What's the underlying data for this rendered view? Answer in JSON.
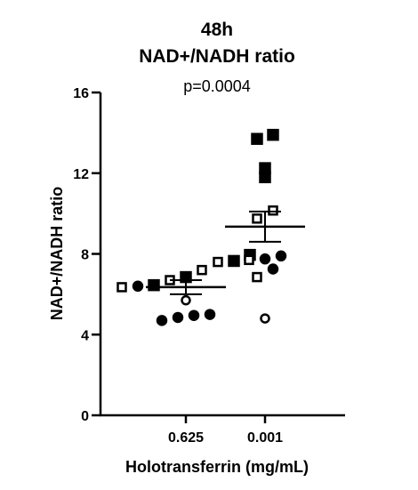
{
  "chart_data": {
    "type": "scatter",
    "title": [
      "48h",
      "NAD+/NADH ratio"
    ],
    "annotation": "p=0.0004",
    "xlabel": "Holotransferrin (mg/mL)",
    "ylabel": "NAD+/NADH ratio",
    "categories": [
      "0.625",
      "0.001"
    ],
    "ylim": [
      0,
      16
    ],
    "yticks": [
      0,
      4,
      8,
      12,
      16
    ],
    "grid": false,
    "groups": [
      {
        "category": "0.625",
        "mean": 6.35,
        "sem_low": 6.0,
        "sem_high": 6.7,
        "points": [
          {
            "marker": "filled-square",
            "value": 7.65
          },
          {
            "marker": "filled-square",
            "value": 7.95
          },
          {
            "marker": "filled-square",
            "value": 6.85
          },
          {
            "marker": "filled-square",
            "value": 6.45
          },
          {
            "marker": "open-square",
            "value": 7.6
          },
          {
            "marker": "open-square",
            "value": 7.2
          },
          {
            "marker": "open-square",
            "value": 6.7
          },
          {
            "marker": "open-square",
            "value": 6.35
          },
          {
            "marker": "filled-circle",
            "value": 6.4
          },
          {
            "marker": "filled-circle",
            "value": 4.7
          },
          {
            "marker": "filled-circle",
            "value": 5.0
          },
          {
            "marker": "filled-circle",
            "value": 4.85
          },
          {
            "marker": "filled-circle",
            "value": 4.95
          },
          {
            "marker": "open-circle",
            "value": 5.7
          }
        ]
      },
      {
        "category": "0.001",
        "mean": 9.35,
        "sem_low": 8.6,
        "sem_high": 10.1,
        "points": [
          {
            "marker": "filled-square",
            "value": 13.9
          },
          {
            "marker": "filled-square",
            "value": 13.7
          },
          {
            "marker": "filled-square",
            "value": 12.25
          },
          {
            "marker": "filled-square",
            "value": 11.8
          },
          {
            "marker": "open-square",
            "value": 10.15
          },
          {
            "marker": "open-square",
            "value": 9.75
          },
          {
            "marker": "open-square",
            "value": 7.7
          },
          {
            "marker": "open-square",
            "value": 6.85
          },
          {
            "marker": "filled-circle",
            "value": 7.9
          },
          {
            "marker": "filled-circle",
            "value": 7.75
          },
          {
            "marker": "filled-circle",
            "value": 7.25
          },
          {
            "marker": "open-circle",
            "value": 4.8
          }
        ]
      }
    ]
  }
}
